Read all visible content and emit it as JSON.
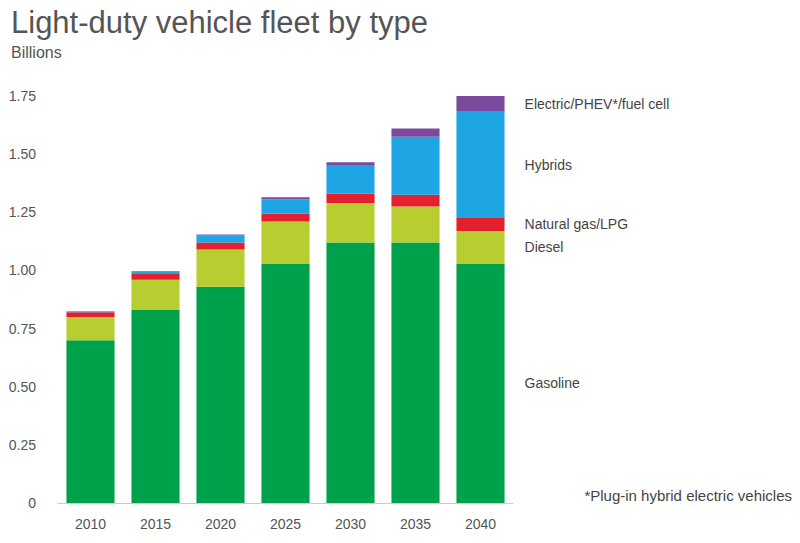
{
  "chart_data": {
    "type": "bar",
    "title": "Light-duty vehicle fleet by type",
    "subtitle": "Billions",
    "categories": [
      "2010",
      "2015",
      "2020",
      "2025",
      "2030",
      "2035",
      "2040"
    ],
    "stacked": true,
    "grid": false,
    "ylim": [
      0,
      1.75
    ],
    "yticks": [
      0,
      0.25,
      {
        "value": 0.5,
        "label": "0.50"
      },
      0.75,
      {
        "value": 1,
        "label": "1.00"
      },
      1.25,
      {
        "value": 1.5,
        "label": "1.50"
      },
      1.75
    ],
    "series": [
      {
        "name": "Gasoline",
        "color": "#00a14b",
        "values": [
          0.7,
          0.83,
          0.93,
          1.03,
          1.12,
          1.12,
          1.03
        ]
      },
      {
        "name": "Diesel",
        "color": "#b8cd2f",
        "values": [
          0.1,
          0.13,
          0.16,
          0.18,
          0.17,
          0.155,
          0.14
        ]
      },
      {
        "name": "Natural gas/LPG",
        "color": "#e3202e",
        "values": [
          0.02,
          0.025,
          0.03,
          0.035,
          0.04,
          0.05,
          0.055
        ]
      },
      {
        "name": "Hybrids",
        "color": "#1ea5e3",
        "values": [
          0.005,
          0.01,
          0.03,
          0.06,
          0.12,
          0.25,
          0.46
        ]
      },
      {
        "name": "Electric/PHEV*/fuel cell",
        "color": "#7b4a9e",
        "values": [
          0,
          0.003,
          0.005,
          0.01,
          0.015,
          0.035,
          0.065
        ]
      }
    ],
    "annotations": [
      "*Plug-in hybrid electric vehicles"
    ]
  }
}
